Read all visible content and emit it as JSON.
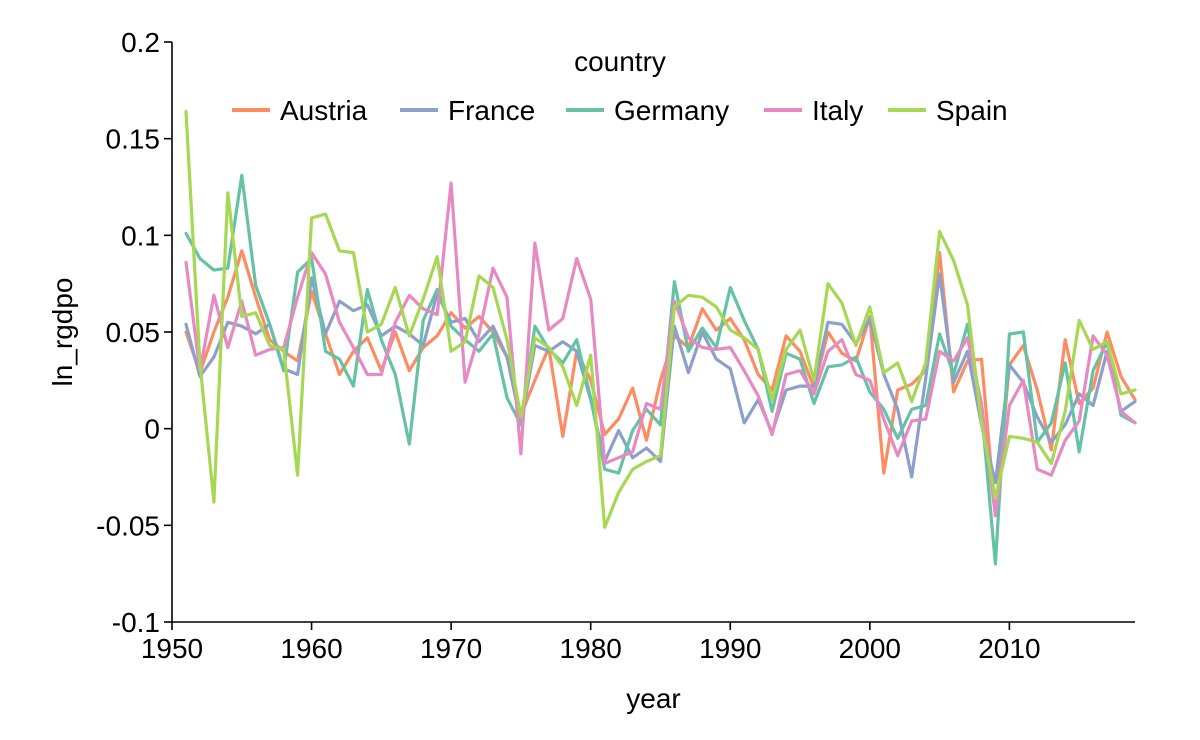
{
  "chart_data": {
    "type": "line",
    "xlabel": "year",
    "ylabel": "ln_rgdpo",
    "xlim": [
      1950,
      2019
    ],
    "ylim": [
      -0.1,
      0.2
    ],
    "x_ticks": [
      1950,
      1960,
      1970,
      1980,
      1990,
      2000,
      2010
    ],
    "x_tick_labels": [
      "1950",
      "1960",
      "1970",
      "1980",
      "1990",
      "2000",
      "2010"
    ],
    "y_ticks": [
      -0.1,
      -0.05,
      0,
      0.05,
      0.1,
      0.15,
      0.2
    ],
    "y_tick_labels": [
      "-0.1",
      "-0.05",
      "0",
      "0.05",
      "0.1",
      "0.15",
      "0.2"
    ],
    "grid": false,
    "legend": {
      "title": "country",
      "position": "top-center",
      "orientation": "horizontal"
    },
    "x": [
      1951,
      1952,
      1953,
      1954,
      1955,
      1956,
      1957,
      1958,
      1959,
      1960,
      1961,
      1962,
      1963,
      1964,
      1965,
      1966,
      1967,
      1968,
      1969,
      1970,
      1971,
      1972,
      1973,
      1974,
      1975,
      1976,
      1977,
      1978,
      1979,
      1980,
      1981,
      1982,
      1983,
      1984,
      1985,
      1986,
      1987,
      1988,
      1989,
      1990,
      1991,
      1992,
      1993,
      1994,
      1995,
      1996,
      1997,
      1998,
      1999,
      2000,
      2001,
      2002,
      2003,
      2004,
      2005,
      2006,
      2007,
      2008,
      2009,
      2010,
      2011,
      2012,
      2013,
      2014,
      2015,
      2016,
      2017,
      2018,
      2019
    ],
    "series": [
      {
        "name": "Austria",
        "color": "#fc8d62",
        "values": [
          0.05,
          0.029,
          0.05,
          0.068,
          0.092,
          0.068,
          0.046,
          0.04,
          0.035,
          0.071,
          0.049,
          0.028,
          0.04,
          0.047,
          0.03,
          0.05,
          0.03,
          0.042,
          0.048,
          0.06,
          0.052,
          0.058,
          0.05,
          0.037,
          0.007,
          0.025,
          0.042,
          -0.004,
          0.04,
          0.025,
          -0.003,
          0.005,
          0.021,
          -0.006,
          0.025,
          0.048,
          0.042,
          0.062,
          0.051,
          0.057,
          0.046,
          0.028,
          0.02,
          0.048,
          0.04,
          0.021,
          0.05,
          0.039,
          0.035,
          0.058,
          -0.023,
          0.02,
          0.023,
          0.03,
          0.091,
          0.019,
          0.035,
          0.036,
          -0.045,
          0.033,
          0.043,
          0.02,
          -0.011,
          0.046,
          0.013,
          0.021,
          0.05,
          0.027,
          0.015
        ]
      },
      {
        "name": "France",
        "color": "#8da0cb",
        "values": [
          0.054,
          0.027,
          0.037,
          0.055,
          0.053,
          0.049,
          0.054,
          0.031,
          0.028,
          0.078,
          0.049,
          0.066,
          0.061,
          0.064,
          0.048,
          0.053,
          0.049,
          0.043,
          0.07,
          0.055,
          0.057,
          0.045,
          0.053,
          0.037,
          0.003,
          0.043,
          0.04,
          0.045,
          0.04,
          0.015,
          -0.017,
          -0.001,
          -0.015,
          -0.01,
          -0.017,
          0.053,
          0.029,
          0.05,
          0.036,
          0.031,
          0.003,
          0.015,
          -0.002,
          0.02,
          0.022,
          0.022,
          0.055,
          0.054,
          0.044,
          0.057,
          0.028,
          0.01,
          -0.025,
          0.026,
          0.08,
          0.024,
          0.04,
          0.002,
          -0.028,
          0.033,
          0.024,
          0.006,
          -0.007,
          0.002,
          0.018,
          0.012,
          0.04,
          0.009,
          0.014
        ]
      },
      {
        "name": "Germany",
        "color": "#66c2a5",
        "values": [
          0.101,
          0.088,
          0.082,
          0.083,
          0.131,
          0.074,
          0.054,
          0.03,
          0.081,
          0.088,
          0.04,
          0.036,
          0.022,
          0.072,
          0.046,
          0.028,
          -0.008,
          0.056,
          0.072,
          0.053,
          0.046,
          0.04,
          0.049,
          0.016,
          0.002,
          0.053,
          0.041,
          0.034,
          0.046,
          0.016,
          -0.021,
          -0.023,
          -0.001,
          0.01,
          0.002,
          0.076,
          0.04,
          0.052,
          0.042,
          0.073,
          0.056,
          0.041,
          0.009,
          0.039,
          0.036,
          0.013,
          0.032,
          0.033,
          0.037,
          0.019,
          0.01,
          -0.005,
          0.01,
          0.012,
          0.049,
          0.028,
          0.054,
          0.01,
          -0.07,
          0.049,
          0.05,
          -0.007,
          0.003,
          0.034,
          -0.012,
          0.03,
          0.045,
          0.007,
          0.003
        ]
      },
      {
        "name": "Italy",
        "color": "#e78ac3",
        "values": [
          0.086,
          0.03,
          0.069,
          0.042,
          0.066,
          0.038,
          0.041,
          0.042,
          0.068,
          0.091,
          0.08,
          0.055,
          0.042,
          0.028,
          0.028,
          0.055,
          0.069,
          0.062,
          0.059,
          0.127,
          0.024,
          0.049,
          0.083,
          0.068,
          -0.013,
          0.096,
          0.051,
          0.057,
          0.088,
          0.067,
          -0.018,
          -0.015,
          -0.012,
          0.013,
          0.01,
          0.066,
          0.047,
          0.042,
          0.041,
          0.042,
          0.03,
          0.017,
          -0.003,
          0.028,
          0.03,
          0.018,
          0.04,
          0.046,
          0.028,
          0.025,
          0.005,
          -0.014,
          0.004,
          0.005,
          0.04,
          0.035,
          0.047,
          0.013,
          -0.045,
          0.012,
          0.025,
          -0.021,
          -0.024,
          -0.006,
          0.004,
          0.048,
          0.038,
          0.009,
          0.003
        ]
      },
      {
        "name": "Spain",
        "color": "#a6d854",
        "values": [
          0.164,
          0.034,
          -0.038,
          0.122,
          0.058,
          0.06,
          0.043,
          0.041,
          -0.024,
          0.109,
          0.111,
          0.092,
          0.091,
          0.05,
          0.054,
          0.073,
          0.048,
          0.067,
          0.089,
          0.04,
          0.045,
          0.079,
          0.073,
          0.046,
          0.006,
          0.047,
          0.042,
          0.032,
          0.012,
          0.038,
          -0.051,
          -0.033,
          -0.021,
          -0.017,
          -0.014,
          0.063,
          0.069,
          0.068,
          0.063,
          0.051,
          0.047,
          0.041,
          0.015,
          0.041,
          0.051,
          0.025,
          0.075,
          0.065,
          0.043,
          0.063,
          0.029,
          0.034,
          0.014,
          0.034,
          0.102,
          0.087,
          0.064,
          0.003,
          -0.036,
          -0.004,
          -0.005,
          -0.007,
          -0.018,
          0.009,
          0.056,
          0.041,
          0.045,
          0.018,
          0.02
        ]
      }
    ]
  }
}
